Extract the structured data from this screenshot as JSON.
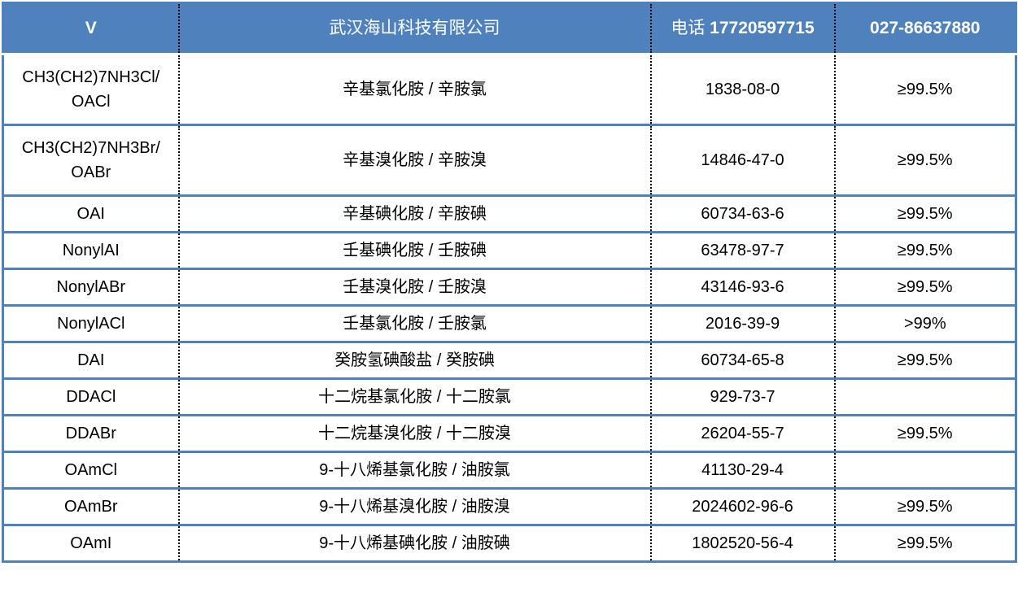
{
  "header": {
    "col1": "V",
    "col2": "武汉海山科技有限公司",
    "col3_label": "电话",
    "col3_phone": "17720597715",
    "col4": "027-86637880"
  },
  "colors": {
    "header_bg": "#4f81bd",
    "row_border": "#4f81bd"
  },
  "rows": [
    {
      "formula": "CH3(CH2)7NH3Cl/ OACl",
      "name": "辛基氯化胺 / 辛胺氯",
      "cas": "1838-08-0",
      "purity": "≥99.5%"
    },
    {
      "formula": "CH3(CH2)7NH3Br/ OABr",
      "name": "辛基溴化胺 / 辛胺溴",
      "cas": "14846-47-0",
      "purity": "≥99.5%"
    },
    {
      "formula": "OAI",
      "name": "辛基碘化胺 / 辛胺碘",
      "cas": "60734-63-6",
      "purity": "≥99.5%"
    },
    {
      "formula": "NonylAI",
      "name": "壬基碘化胺 / 壬胺碘",
      "cas": "63478-97-7",
      "purity": "≥99.5%"
    },
    {
      "formula": "NonylABr",
      "name": "壬基溴化胺 / 壬胺溴",
      "cas": "43146-93-6",
      "purity": "≥99.5%"
    },
    {
      "formula": "NonylACl",
      "name": "壬基氯化胺 / 壬胺氯",
      "cas": "2016-39-9",
      "purity": ">99%"
    },
    {
      "formula": "DAI",
      "name": "癸胺氢碘酸盐 / 癸胺碘",
      "cas": "60734-65-8",
      "purity": "≥99.5%"
    },
    {
      "formula": "DDACl",
      "name": "十二烷基氯化胺 / 十二胺氯",
      "cas": "929-73-7",
      "purity": ""
    },
    {
      "formula": "DDABr",
      "name": "十二烷基溴化胺 / 十二胺溴",
      "cas": "26204-55-7",
      "purity": "≥99.5%"
    },
    {
      "formula": "OAmCl",
      "name": "9-十八烯基氯化胺 / 油胺氯",
      "cas": "41130-29-4",
      "purity": ""
    },
    {
      "formula": "OAmBr",
      "name": "9-十八烯基溴化胺 / 油胺溴",
      "cas": "2024602-96-6",
      "purity": "≥99.5%"
    },
    {
      "formula": "OAmI",
      "name": "9-十八烯基碘化胺 / 油胺碘",
      "cas": "1802520-56-4",
      "purity": "≥99.5%"
    }
  ]
}
